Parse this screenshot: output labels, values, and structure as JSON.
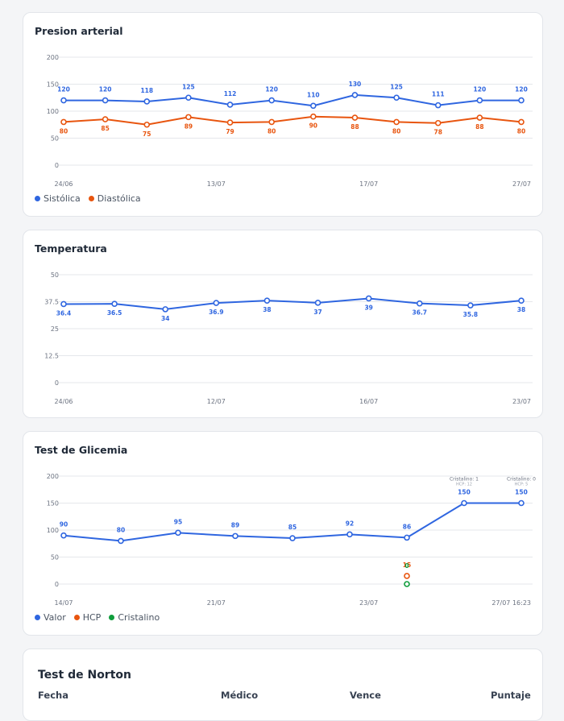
{
  "colors": {
    "sistolica": "#2f66e0",
    "diastolica": "#e8550f",
    "hcp": "#e8550f",
    "cristalino": "#0f9d3c",
    "grid": "#e5e7eb",
    "axis_text": "#6b7280"
  },
  "norton": {
    "title": "Test de Norton",
    "columns": [
      "Fecha",
      "Médico",
      "Vence",
      "Puntaje"
    ]
  },
  "chart_data": [
    {
      "id": "presion",
      "type": "line",
      "title": "Presion arterial",
      "ylim": [
        0,
        200
      ],
      "yticks": [
        0,
        50,
        100,
        150,
        200
      ],
      "xticks": [
        "24/06",
        "13/07",
        "17/07",
        "27/07"
      ],
      "legend_position": "bottom-left",
      "series": [
        {
          "name": "Sistólica",
          "color": "#2f66e0",
          "values": [
            120,
            120,
            118,
            125,
            112,
            120,
            110,
            130,
            125,
            111,
            120,
            120
          ]
        },
        {
          "name": "Diastólica",
          "color": "#e8550f",
          "values": [
            80,
            85,
            75,
            89,
            79,
            80,
            90,
            88,
            80,
            78,
            88,
            80
          ]
        }
      ]
    },
    {
      "id": "temperatura",
      "type": "line",
      "title": "Temperatura",
      "ylim": [
        0,
        50
      ],
      "yticks": [
        0,
        12.5,
        25,
        37.5,
        50
      ],
      "ytick_labels": [
        "0",
        "12.5",
        "25",
        "37.5",
        "50"
      ],
      "xticks": [
        "24/06",
        "12/07",
        "16/07",
        "23/07"
      ],
      "series": [
        {
          "name": "",
          "color": "#2f66e0",
          "values": [
            36.4,
            36.5,
            34,
            36.9,
            38,
            37,
            39,
            36.7,
            35.8,
            38
          ]
        }
      ]
    },
    {
      "id": "glicemia",
      "type": "line",
      "title": "Test de Glicemia",
      "ylim": [
        0,
        200
      ],
      "yticks": [
        0,
        50,
        100,
        150,
        200
      ],
      "xticks": [
        "14/07",
        "21/07",
        "23/07",
        "27/07 16:23"
      ],
      "legend_position": "bottom-left",
      "series": [
        {
          "name": "Valor",
          "color": "#2f66e0",
          "values": [
            90,
            80,
            95,
            89,
            85,
            92,
            86,
            150,
            150
          ]
        },
        {
          "name": "HCP",
          "color": "#e8550f",
          "values": [
            null,
            null,
            null,
            null,
            null,
            null,
            15,
            null,
            null
          ]
        },
        {
          "name": "Cristalino",
          "color": "#0f9d3c",
          "values": [
            null,
            null,
            null,
            null,
            null,
            null,
            0,
            null,
            null
          ]
        }
      ],
      "annotations": [
        {
          "index": 7,
          "text": "Cristalino: 1",
          "subtext": "HCP: 12"
        },
        {
          "index": 8,
          "text": "Cristalino: 0",
          "subtext": "HCP: 5"
        }
      ]
    }
  ]
}
